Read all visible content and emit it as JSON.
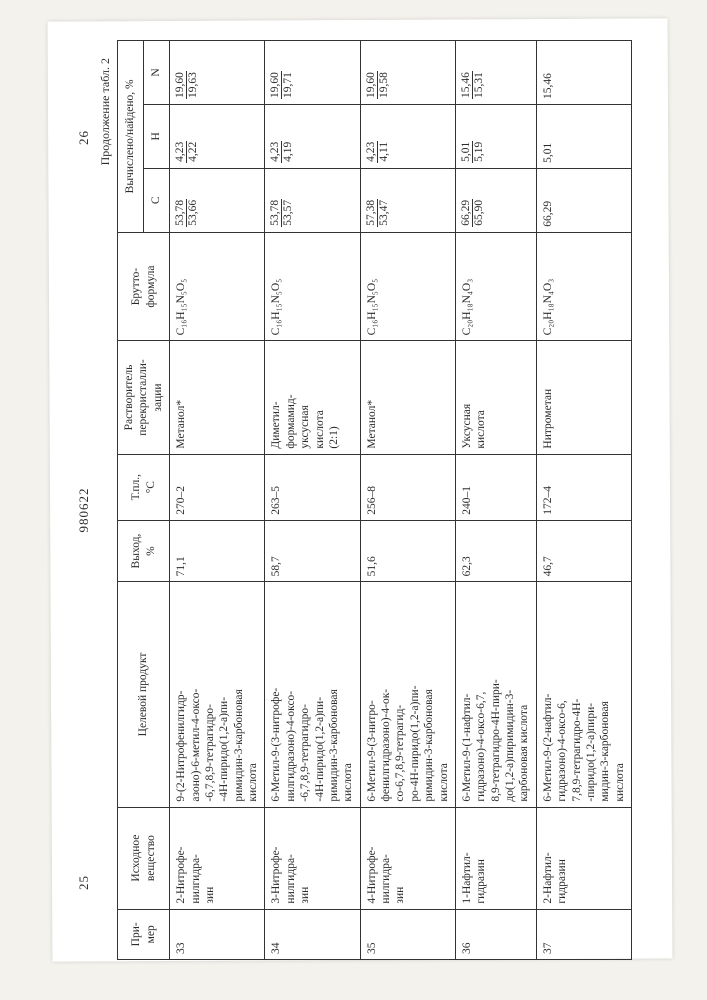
{
  "page_left_num": "25",
  "doc_num": "980622",
  "page_right_num": "26",
  "table_caption": "Продолжение табл. 2",
  "headers": {
    "num": "При-\nмер",
    "src": "Исходное\nвещество",
    "prod": "Целевой продукт",
    "yield": "Выход,\n%",
    "mp": "Т.пл.,\n°C",
    "solv": "Растворитель\nперекристалли-\nзации",
    "formula": "Брутто-\nформула",
    "calc_found": "Вычислено/найдено, %",
    "c": "C",
    "h": "H",
    "n": "N"
  },
  "rows": [
    {
      "num": "33",
      "src": "2-Нитрофе-\nнилгидра-\nзин",
      "prod": "9-(2-Нитрофенилгидр-\nазоно)-6-метил-4-оксо-\n-6,7,8,9-тетрагидро-\n-4H-пиридо(1,2-a)пи-\nримидин-3-карбоновая\nкислота",
      "yield": "71,1",
      "mp": "270–2",
      "solv": "Метанол*",
      "formula": "C₁₆H₁₅N₅O₅",
      "c_t": "53,78",
      "c_b": "53,66",
      "h_t": "4,23",
      "h_b": "4,22",
      "n_t": "19,60",
      "n_b": "19,63"
    },
    {
      "num": "34",
      "src": "3-Нитрофе-\nнилгидра-\nзин",
      "prod": "6-Метил-9-(3-нитрофе-\nнилгидразоно)-4-оксо-\n-6,7,8,9-тетрагидро-\n-4H-пиридо(1,2-a)пи-\nримидин-3-карбоновая\nкислота",
      "yield": "58,7",
      "mp": "263–5",
      "solv": "Диметил-\nформамид-\nуксусная\nкислота\n(2:1)",
      "formula": "C₁₆H₁₅N₅O₅",
      "c_t": "53,78",
      "c_b": "53,57",
      "h_t": "4,23",
      "h_b": "4,19",
      "n_t": "19,60",
      "n_b": "19,71"
    },
    {
      "num": "35",
      "src": "4-Нитрофе-\nнилгидра-\nзин",
      "prod": "6-Метил-9-(3-нитро-\nфенилгидразоно)-4-ок-\nсо-6,7,8,9-тетрагид-\nро-4H-пиридо(1,2-a)пи-\nримидин-3-карбоновая\nкислота",
      "yield": "51,6",
      "mp": "256–8",
      "solv": "Метанол*",
      "formula": "C₁₆H₁₅N₅O₅",
      "c_t": "57,38",
      "c_b": "53,47",
      "h_t": "4,23",
      "h_b": "4,11",
      "n_t": "19,60",
      "n_b": "19,58"
    },
    {
      "num": "36",
      "src": "1-Нафтил-\nгидразин",
      "prod": "6-Метил-9-(1-нафтил-\nгидразоно)-4-оксо-6,7,\n8,9-тетрагидро-4H-пири-\nдо(1,2-a)пиримидин-3-\nкарбоновая кислота",
      "yield": "62,3",
      "mp": "240–1",
      "solv": "Уксусная\nкислота",
      "formula": "C₂₀H₁₈N₄O₃",
      "c_t": "66,29",
      "c_b": "65,90",
      "h_t": "5,01",
      "h_b": "5,19",
      "n_t": "15,46",
      "n_b": "15,31"
    },
    {
      "num": "37",
      "src": "2-Нафтил-\nгидразин",
      "prod": "6-Метил-9-(2-нафтил-\nгидразоно)-4-оксо-6,\n7,8,9-тетрагидро-4H-\n-пиридо(1,2-a)пири-\nмидин-3-карбоновая\nкислота",
      "yield": "46,7",
      "mp": "172–4",
      "solv": "Нитрометан",
      "formula": "C₂₀H₁₈N₄O₃",
      "c_t": "66,29",
      "c_b": "",
      "h_t": "5,01",
      "h_b": "",
      "n_t": "15,46",
      "n_b": ""
    }
  ]
}
